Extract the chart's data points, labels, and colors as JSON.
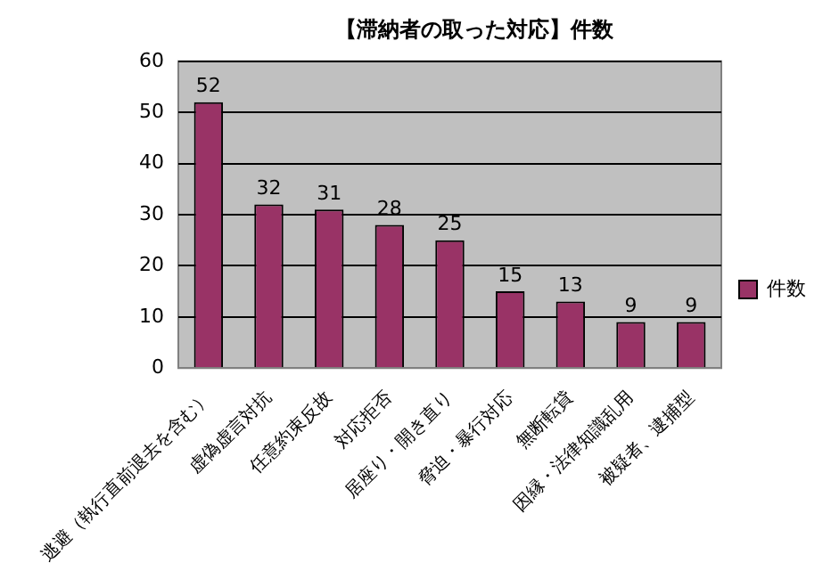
{
  "chart_data": {
    "type": "bar",
    "title": "【滞納者の取った対応】件数",
    "categories": [
      "逃避（執行直前退去を含む）",
      "虚偽虚言対抗",
      "任意約束反故",
      "対応拒否",
      "居座り・開き直り",
      "脅迫・暴行対応",
      "無断転貸",
      "因縁・法律知識乱用",
      "被疑者、逮捕型"
    ],
    "series": [
      {
        "name": "件数",
        "color": "#993366",
        "values": [
          52,
          32,
          31,
          28,
          25,
          15,
          13,
          9,
          9
        ]
      }
    ],
    "ylim": [
      0,
      60
    ],
    "yticks": [
      0,
      10,
      20,
      30,
      40,
      50,
      60
    ],
    "grid": "y",
    "legend": "right",
    "data_labels": true
  }
}
